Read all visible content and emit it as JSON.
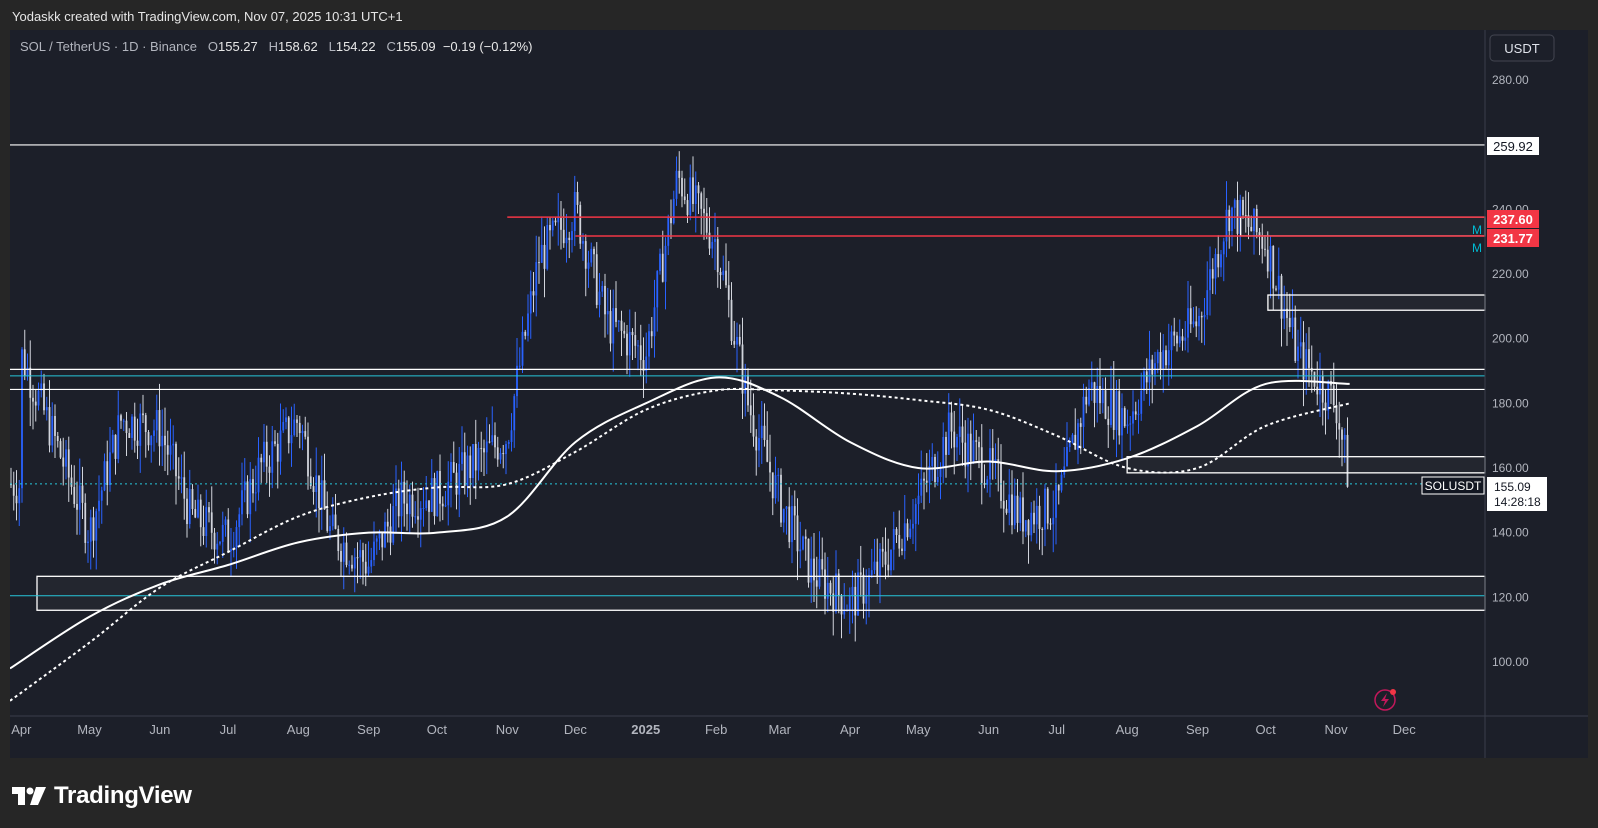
{
  "header": {
    "credit": "Yodaskk created with TradingView.com, Nov 07, 2025 10:31 UTC+1"
  },
  "legend": {
    "symbol": "SOL / TetherUS · 1D · Binance",
    "open_label": "O",
    "open": "155.27",
    "high_label": "H",
    "high": "158.62",
    "low_label": "L",
    "low": "154.22",
    "close_label": "C",
    "close": "155.09",
    "change": "−0.19 (−0.12%)"
  },
  "currency_button": "USDT",
  "price_axis": {
    "ticks": [
      "280.00",
      "260.00",
      "240.00",
      "220.00",
      "200.00",
      "180.00",
      "160.00",
      "140.00",
      "120.00",
      "100.00"
    ]
  },
  "time_axis": {
    "labels": [
      "Apr",
      "May",
      "Jun",
      "Jul",
      "Aug",
      "Sep",
      "Oct",
      "Nov",
      "Dec",
      "2025",
      "Feb",
      "Mar",
      "Apr",
      "May",
      "Jun",
      "Jul",
      "Aug",
      "Sep",
      "Oct",
      "Nov",
      "Dec"
    ]
  },
  "price_badges": {
    "level_1": "259.92",
    "red_1": "237.60",
    "red_2": "231.77",
    "last_price": "155.09",
    "countdown": "14:28:18",
    "symbol_tag": "SOLUSDT",
    "marker_m": "M"
  },
  "brand": {
    "name": "TradingView"
  },
  "colors": {
    "background": "#1c1f29",
    "candles": "#2962ff",
    "resistance": "#f23645",
    "level": "#ffffff",
    "support_line": "#00bcd4"
  },
  "chart_data": {
    "type": "line",
    "symbol": "SOLUSDT",
    "interval": "1D",
    "ylim": [
      88,
      292
    ],
    "y_scale": "linear",
    "grid": false,
    "x_labels": [
      "Apr",
      "May",
      "Jun",
      "Jul",
      "Aug",
      "Sep",
      "Oct",
      "Nov",
      "Dec",
      "2025",
      "Feb",
      "Mar",
      "Apr",
      "May",
      "Jun",
      "Jul",
      "Aug",
      "Sep",
      "Oct",
      "Nov",
      "Dec"
    ],
    "horizontal_levels": [
      {
        "price": 259.92,
        "style": "white"
      },
      {
        "price": 237.6,
        "style": "red",
        "from": "2024-11-01"
      },
      {
        "price": 231.77,
        "style": "red",
        "from": "2024-12-01"
      },
      {
        "price": 190.5,
        "style": "white"
      },
      {
        "price": 188.5,
        "style": "teal"
      },
      {
        "price": 184.3,
        "style": "white"
      },
      {
        "price": 155.09,
        "style": "teal-dashed"
      },
      {
        "price": 120.5,
        "style": "teal"
      }
    ],
    "zones": [
      {
        "top": 126.5,
        "bottom": 116.0
      },
      {
        "top": 237.6,
        "bottom": 231.77,
        "from": "2025-09-20"
      },
      {
        "top": 213.5,
        "bottom": 208.8,
        "from": "2025-10-02"
      },
      {
        "top": 163.5,
        "bottom": 158.5,
        "from": "2025-08-01"
      }
    ],
    "series": [
      {
        "style": "candles",
        "dates": [
          "2024-04-01",
          "2024-04-15",
          "2024-05-01",
          "2024-05-15",
          "2024-06-01",
          "2024-06-15",
          "2024-07-01",
          "2024-07-15",
          "2024-08-01",
          "2024-08-15",
          "2024-09-01",
          "2024-09-15",
          "2024-10-01",
          "2024-10-15",
          "2024-11-01",
          "2024-11-15",
          "2024-12-01",
          "2024-12-15",
          "2025-01-01",
          "2025-01-15",
          "2025-02-01",
          "2025-02-15",
          "2025-03-01",
          "2025-03-15",
          "2025-04-01",
          "2025-04-15",
          "2025-05-01",
          "2025-05-15",
          "2025-06-01",
          "2025-06-15",
          "2025-07-01",
          "2025-07-15",
          "2025-08-01",
          "2025-08-15",
          "2025-09-01",
          "2025-09-15",
          "2025-10-01",
          "2025-10-15",
          "2025-11-01",
          "2025-11-07"
        ],
        "values": [
          195,
          170,
          140,
          175,
          172,
          145,
          138,
          160,
          175,
          140,
          130,
          150,
          152,
          160,
          170,
          225,
          240,
          205,
          195,
          250,
          230,
          180,
          150,
          128,
          118,
          130,
          150,
          172,
          160,
          145,
          148,
          185,
          175,
          195,
          205,
          240,
          230,
          195,
          180,
          155
        ]
      },
      {
        "style": "solid",
        "dates": [
          "2024-03-27",
          "2024-05-01",
          "2024-06-01",
          "2024-07-01",
          "2024-08-01",
          "2024-09-01",
          "2024-10-01",
          "2024-11-01",
          "2024-12-01",
          "2025-01-01",
          "2025-02-01",
          "2025-03-01",
          "2025-04-01",
          "2025-05-01",
          "2025-06-01",
          "2025-07-01",
          "2025-08-01",
          "2025-09-01",
          "2025-10-01",
          "2025-11-07"
        ],
        "values": [
          98,
          114,
          124,
          130,
          137,
          140,
          140,
          145,
          168,
          180,
          188,
          182,
          168,
          160,
          162,
          159,
          163,
          173,
          186,
          186
        ]
      },
      {
        "style": "dashed",
        "dates": [
          "2024-03-27",
          "2024-05-01",
          "2024-06-01",
          "2024-07-01",
          "2024-08-01",
          "2024-09-01",
          "2024-10-01",
          "2024-11-01",
          "2024-12-01",
          "2025-01-01",
          "2025-02-01",
          "2025-03-01",
          "2025-04-01",
          "2025-05-01",
          "2025-06-01",
          "2025-07-01",
          "2025-08-01",
          "2025-09-01",
          "2025-10-01",
          "2025-11-07"
        ],
        "values": [
          88,
          106,
          123,
          134,
          145,
          151,
          154,
          155,
          165,
          178,
          184,
          184,
          183,
          181,
          178,
          170,
          160,
          160,
          173,
          180
        ]
      }
    ]
  }
}
